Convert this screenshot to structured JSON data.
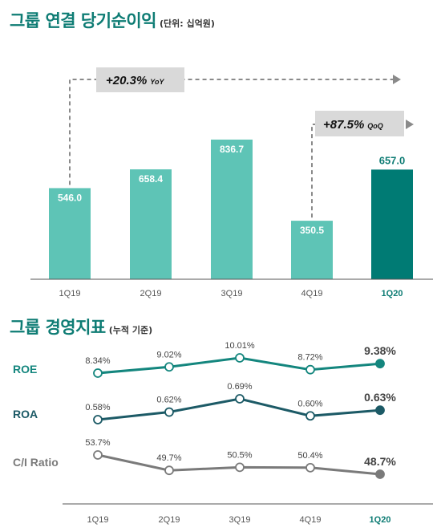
{
  "section1": {
    "title": "그룹 연결 당기순이익",
    "unit": "(단위: 십억원)",
    "callout_yoy": {
      "value": "+20.3%",
      "suffix": "YoY"
    },
    "callout_qoq": {
      "value": "+87.5%",
      "suffix": "QoQ"
    }
  },
  "section2": {
    "title": "그룹 경영지표",
    "unit": "(누적 기준)"
  },
  "colors": {
    "bar": "#5ec4b6",
    "bar_highlight": "#007b74",
    "roe": "#14867e",
    "roa": "#1c5a66",
    "ci": "#7a7a7a",
    "dashed": "#8a8a8a",
    "callout_bg": "#d9d9d9"
  },
  "chart_data": [
    {
      "type": "bar",
      "title": "그룹 연결 당기순이익",
      "categories": [
        "1Q19",
        "2Q19",
        "3Q19",
        "4Q19",
        "1Q20"
      ],
      "values": [
        546.0,
        658.4,
        836.7,
        350.5,
        657.0
      ],
      "value_labels": [
        "546.0",
        "658.4",
        "836.7",
        "350.5",
        "657.0"
      ],
      "highlight_index": 4,
      "ylim": [
        0,
        1000
      ]
    },
    {
      "type": "line",
      "title": "그룹 경영지표",
      "categories": [
        "1Q19",
        "2Q19",
        "3Q19",
        "4Q19",
        "1Q20"
      ],
      "series": [
        {
          "name": "ROE",
          "values": [
            8.34,
            9.02,
            10.01,
            8.72,
            9.38
          ],
          "labels": [
            "8.34%",
            "9.02%",
            "10.01%",
            "8.72%",
            "9.38%"
          ]
        },
        {
          "name": "ROA",
          "values": [
            0.58,
            0.62,
            0.69,
            0.6,
            0.63
          ],
          "labels": [
            "0.58%",
            "0.62%",
            "0.69%",
            "0.60%",
            "0.63%"
          ]
        },
        {
          "name": "C/I Ratio",
          "values": [
            53.7,
            49.7,
            50.5,
            50.4,
            48.7
          ],
          "labels": [
            "53.7%",
            "49.7%",
            "50.5%",
            "50.4%",
            "48.7%"
          ]
        }
      ]
    }
  ]
}
